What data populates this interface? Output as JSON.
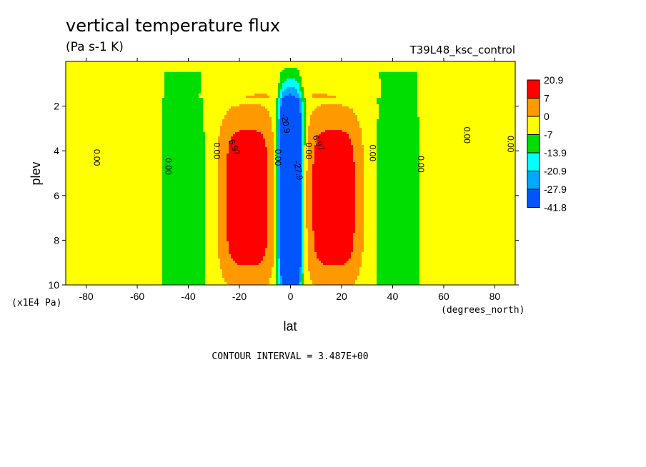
{
  "chart_data": {
    "type": "heatmap",
    "subtype": "filled-contour",
    "title": "vertical temperature flux",
    "units": "(Pa s-1 K)",
    "run_name": "T39L48_ksc_control",
    "xlabel": "lat",
    "ylabel": "plev",
    "x_units": "(degrees_north)",
    "y_units": "(x1E4 Pa)",
    "x_ticks": [
      -80,
      -60,
      -40,
      -20,
      0,
      20,
      40,
      60,
      80
    ],
    "y_ticks": [
      2,
      4,
      6,
      8,
      10
    ],
    "xlim": [
      -88,
      88
    ],
    "ylim": [
      10,
      0
    ],
    "contour_interval_label": "CONTOUR INTERVAL = 3.487E+00",
    "legend": [
      {
        "label": "20.9",
        "color": "#ff0000"
      },
      {
        "label": "7",
        "color": "#ff9900"
      },
      {
        "label": "0",
        "color": "#ffff00"
      },
      {
        "label": "-7",
        "color": "#00dd00"
      },
      {
        "label": "-13.9",
        "color": "#00ffff"
      },
      {
        "label": "-20.9",
        "color": "#00a8ff"
      },
      {
        "label": "-27.9",
        "color": "#0055ff"
      },
      {
        "label": "-41.8",
        "color": "#ffffff"
      }
    ],
    "contour_labels": [
      {
        "text": "0.00",
        "lat": -77,
        "plev": 4.3,
        "rotate": 90
      },
      {
        "text": "0.00",
        "lat": -49,
        "plev": 4.7,
        "rotate": 90
      },
      {
        "text": "0.00",
        "lat": -30,
        "plev": 4.0,
        "rotate": 90
      },
      {
        "text": "6.97",
        "lat": -23,
        "plev": 3.9,
        "rotate": 65
      },
      {
        "text": "0.00",
        "lat": -6,
        "plev": 4.3,
        "rotate": 90
      },
      {
        "text": "-20.9",
        "lat": -3,
        "plev": 2.8,
        "rotate": 80
      },
      {
        "text": "-27.9",
        "lat": 2,
        "plev": 4.9,
        "rotate": 80
      },
      {
        "text": "0.00",
        "lat": 6,
        "plev": 4.0,
        "rotate": 90
      },
      {
        "text": "6.97",
        "lat": 10,
        "plev": 3.7,
        "rotate": 65
      },
      {
        "text": "0.00",
        "lat": 31,
        "plev": 4.1,
        "rotate": 90
      },
      {
        "text": "0.00",
        "lat": 50,
        "plev": 4.6,
        "rotate": 90
      },
      {
        "text": "0.00",
        "lat": 68,
        "plev": 3.3,
        "rotate": 90
      },
      {
        "text": "0.00",
        "lat": 85,
        "plev": 3.7,
        "rotate": 90
      }
    ]
  }
}
